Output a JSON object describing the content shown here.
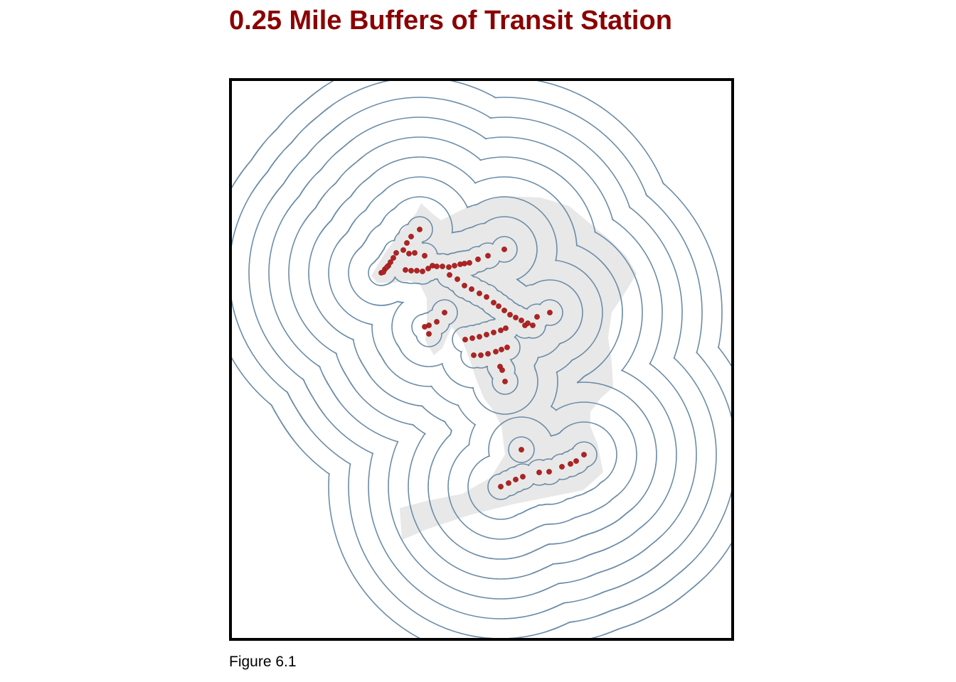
{
  "title": "0.25 Mile Buffers of Transit Station",
  "caption": "Figure 6.1",
  "map": {
    "buffer_distance_miles": 0.25,
    "buffer_ring_count": 9,
    "colors": {
      "title": "#8b0000",
      "buffer_line": "#6b8ca8",
      "city_fill": "#e8e8e8",
      "station_point": "#b22222",
      "frame_border": "#000000"
    },
    "layers": [
      "city-boundary",
      "station-buffers",
      "transit-stations"
    ]
  }
}
